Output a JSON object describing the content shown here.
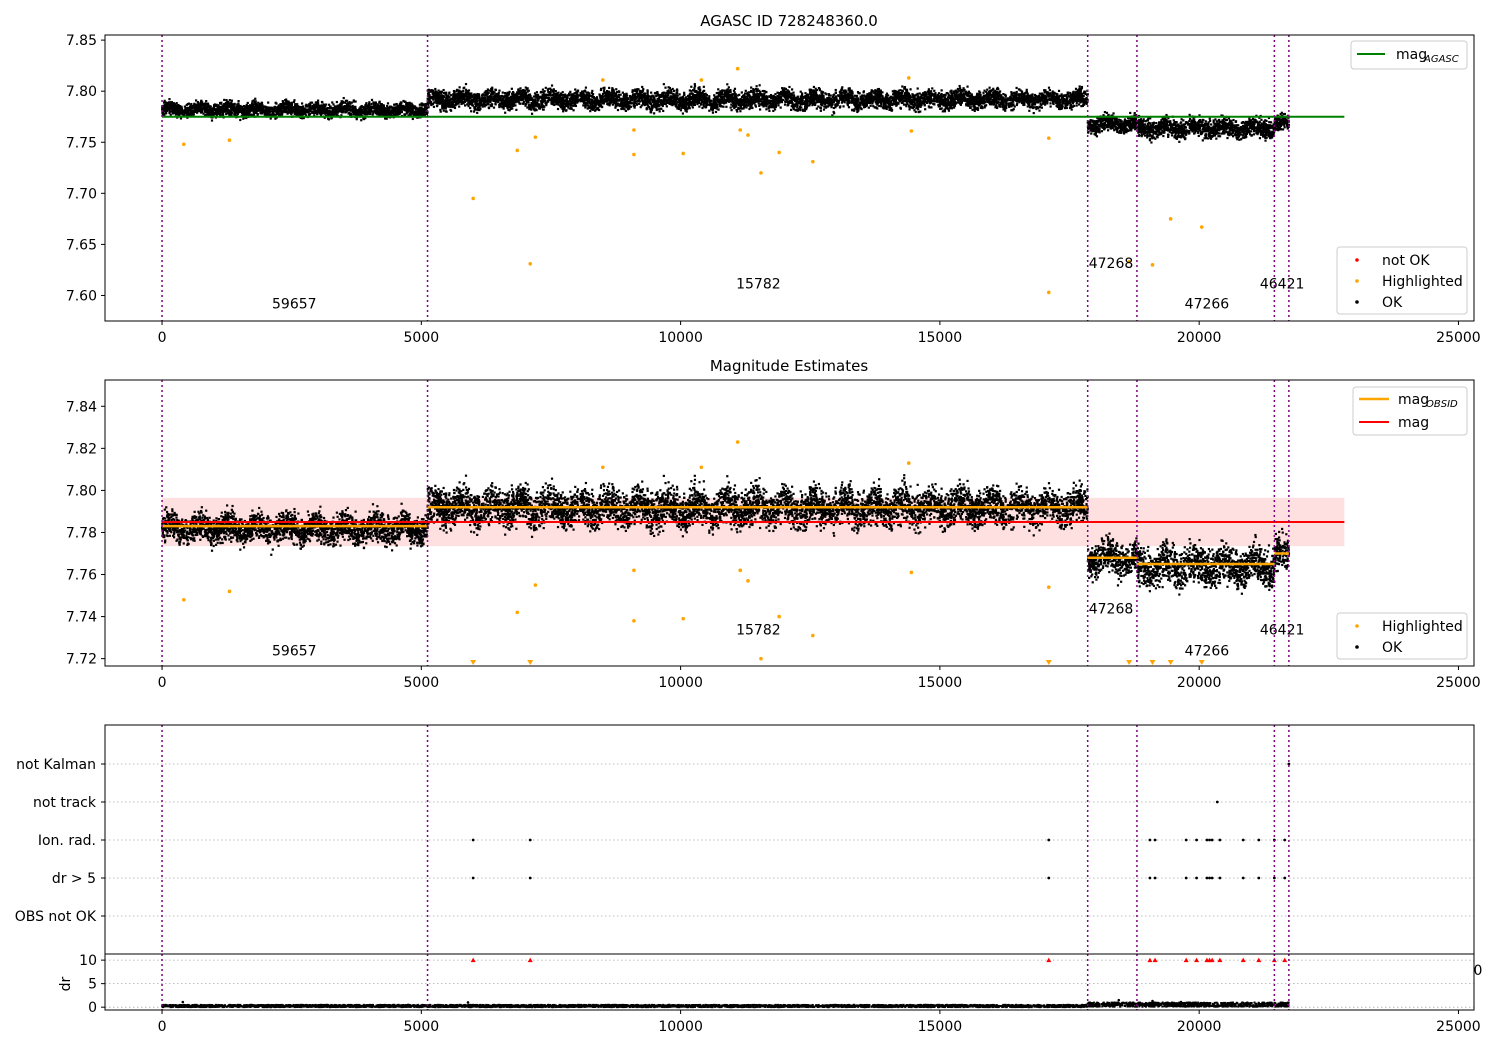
{
  "chart_data": [
    {
      "type": "scatter",
      "title": "AGASC ID 728248360.0",
      "xlabel": "",
      "ylabel": "",
      "xlim": [
        -1100,
        25300
      ],
      "ylim": [
        7.575,
        7.855
      ],
      "x_ticks": [
        0,
        5000,
        10000,
        15000,
        20000,
        25000
      ],
      "x_tick_labels": [
        "0",
        "5000",
        "10000",
        "15000",
        "20000",
        "25000"
      ],
      "y_ticks": [
        7.6,
        7.65,
        7.7,
        7.75,
        7.8,
        7.85
      ],
      "y_tick_labels": [
        "7.60",
        "7.65",
        "7.70",
        "7.75",
        "7.80",
        "7.85"
      ],
      "obs_boundaries": [
        0,
        5120,
        17850,
        18800,
        21450,
        21730
      ],
      "obs_labels": [
        {
          "text": "59657",
          "x": 2550,
          "y": 7.587
        },
        {
          "text": "15782",
          "x": 11500,
          "y": 7.607
        },
        {
          "text": "47268",
          "x": 18300,
          "y": 7.627
        },
        {
          "text": "47266",
          "x": 20150,
          "y": 7.587
        },
        {
          "text": "46421",
          "x": 21600,
          "y": 7.607
        }
      ],
      "mag_agasc": 7.775,
      "mag_agasc_xrange": [
        0,
        22800
      ],
      "ok_bands": [
        {
          "x": [
            0,
            5120
          ],
          "center": 7.782,
          "spread": 0.006
        },
        {
          "x": [
            5120,
            17850
          ],
          "center": 7.792,
          "spread": 0.008
        },
        {
          "x": [
            17850,
            18800
          ],
          "center": 7.768,
          "spread": 0.007
        },
        {
          "x": [
            18800,
            21450
          ],
          "center": 7.764,
          "spread": 0.008
        },
        {
          "x": [
            21450,
            21730
          ],
          "center": 7.769,
          "spread": 0.007
        }
      ],
      "highlighted_points": [
        [
          420,
          7.748
        ],
        [
          1300,
          7.752
        ],
        [
          6000,
          7.695
        ],
        [
          6850,
          7.742
        ],
        [
          7100,
          7.631
        ],
        [
          7200,
          7.755
        ],
        [
          9100,
          7.762
        ],
        [
          9100,
          7.738
        ],
        [
          10050,
          7.739
        ],
        [
          11150,
          7.762
        ],
        [
          11300,
          7.757
        ],
        [
          11550,
          7.72
        ],
        [
          11900,
          7.74
        ],
        [
          12550,
          7.731
        ],
        [
          14450,
          7.761
        ],
        [
          17100,
          7.754
        ],
        [
          17100,
          7.603
        ],
        [
          18650,
          7.633
        ],
        [
          19100,
          7.63
        ],
        [
          19450,
          7.675
        ],
        [
          20050,
          7.667
        ],
        [
          11100,
          7.822
        ],
        [
          10400,
          7.811
        ],
        [
          8500,
          7.811
        ],
        [
          14400,
          7.813
        ]
      ],
      "legend": [
        {
          "label": "mag",
          "sub": "AGASC",
          "color": "#008000"
        }
      ],
      "legend2": [
        {
          "label": "not OK",
          "color": "#ff0000"
        },
        {
          "label": "Highlighted",
          "color": "#ffa500"
        },
        {
          "label": "OK",
          "color": "#000000"
        }
      ]
    },
    {
      "type": "scatter",
      "title": "Magnitude Estimates",
      "xlabel": "",
      "ylabel": "",
      "xlim": [
        -1100,
        25300
      ],
      "ylim": [
        7.7165,
        7.8525
      ],
      "x_ticks": [
        0,
        5000,
        10000,
        15000,
        20000,
        25000
      ],
      "x_tick_labels": [
        "0",
        "5000",
        "10000",
        "15000",
        "20000",
        "25000"
      ],
      "y_ticks": [
        7.72,
        7.74,
        7.76,
        7.78,
        7.8,
        7.82,
        7.84
      ],
      "y_tick_labels": [
        "7.72",
        "7.74",
        "7.76",
        "7.78",
        "7.80",
        "7.82",
        "7.84"
      ],
      "obs_boundaries": [
        0,
        5120,
        17850,
        18800,
        21450,
        21730
      ],
      "obs_labels": [
        {
          "text": "59657",
          "x": 2550,
          "y": 7.7215
        },
        {
          "text": "15782",
          "x": 11500,
          "y": 7.7315
        },
        {
          "text": "47268",
          "x": 18300,
          "y": 7.7415
        },
        {
          "text": "47266",
          "x": 20150,
          "y": 7.7215
        },
        {
          "text": "46421",
          "x": 21600,
          "y": 7.7315
        }
      ],
      "mag": 7.785,
      "mag_band": [
        7.7735,
        7.7965
      ],
      "mag_xrange": [
        0,
        22800
      ],
      "mag_obsid": [
        {
          "x": [
            0,
            5120
          ],
          "value": 7.783
        },
        {
          "x": [
            5120,
            17850
          ],
          "value": 7.792
        },
        {
          "x": [
            17850,
            18800
          ],
          "value": 7.768
        },
        {
          "x": [
            18800,
            21450
          ],
          "value": 7.765
        },
        {
          "x": [
            21450,
            21730
          ],
          "value": 7.77
        }
      ],
      "ok_bands": [
        {
          "x": [
            0,
            5120
          ],
          "center": 7.782,
          "spread": 0.006
        },
        {
          "x": [
            5120,
            17850
          ],
          "center": 7.792,
          "spread": 0.008
        },
        {
          "x": [
            17850,
            18800
          ],
          "center": 7.768,
          "spread": 0.007
        },
        {
          "x": [
            18800,
            21450
          ],
          "center": 7.764,
          "spread": 0.008
        },
        {
          "x": [
            21450,
            21730
          ],
          "center": 7.769,
          "spread": 0.007
        }
      ],
      "highlighted_points": [
        [
          420,
          7.748
        ],
        [
          1300,
          7.752
        ],
        [
          6850,
          7.742
        ],
        [
          7200,
          7.755
        ],
        [
          9100,
          7.762
        ],
        [
          9100,
          7.738
        ],
        [
          10050,
          7.739
        ],
        [
          11150,
          7.762
        ],
        [
          11300,
          7.757
        ],
        [
          11550,
          7.72
        ],
        [
          11900,
          7.74
        ],
        [
          12550,
          7.731
        ],
        [
          14450,
          7.761
        ],
        [
          17100,
          7.754
        ],
        [
          11100,
          7.823
        ],
        [
          10400,
          7.811
        ],
        [
          8500,
          7.811
        ],
        [
          14400,
          7.813
        ]
      ],
      "offscale_points": [
        6000,
        7100,
        17100,
        18650,
        19100,
        19450,
        20050
      ],
      "legend": [
        {
          "label": "mag",
          "sub": "OBSID",
          "color": "#ffa500"
        },
        {
          "label": "mag",
          "sub": "",
          "color": "#ff0000"
        }
      ],
      "legend2": [
        {
          "label": "Highlighted",
          "color": "#ffa500"
        },
        {
          "label": "OK",
          "color": "#000000"
        }
      ]
    },
    {
      "type": "scatter",
      "title": "",
      "xlabel": "",
      "ylabel": "",
      "xlim": [
        -1100,
        25300
      ],
      "categories": [
        "not Kalman",
        "not track",
        "Ion. rad.",
        "dr > 5",
        "OBS not OK"
      ],
      "obs_boundaries": [
        0,
        5120,
        17850,
        18800,
        21450,
        21730
      ],
      "flag_points": {
        "not Kalman": [
          21730
        ],
        "not track": [
          20350
        ],
        "Ion. rad.": [
          6000,
          7100,
          17100,
          19050,
          19150,
          19750,
          19950,
          20150,
          20200,
          20250,
          20400,
          20850,
          21150,
          21450,
          21650
        ],
        "dr > 5": [
          6000,
          7100,
          17100,
          19050,
          19150,
          19750,
          19950,
          20150,
          20200,
          20250,
          20400,
          20850,
          21150,
          21450,
          21650
        ],
        "OBS not OK": []
      },
      "partial_tick_label": "0"
    },
    {
      "type": "scatter",
      "title": "",
      "xlabel": "",
      "ylabel": "dr",
      "xlim": [
        -1100,
        25300
      ],
      "ylim": [
        -0.6,
        11.3
      ],
      "y_ticks": [
        0,
        5,
        10
      ],
      "y_tick_labels": [
        "0",
        "5",
        "10"
      ],
      "x_ticks": [
        0,
        5000,
        10000,
        15000,
        20000,
        25000
      ],
      "x_tick_labels": [
        "0",
        "5000",
        "10000",
        "15000",
        "20000",
        "25000"
      ],
      "obs_boundaries": [
        0,
        5120,
        17850,
        18800,
        21450,
        21730
      ],
      "dr_bands": [
        {
          "x": [
            0,
            17850
          ],
          "center": 0.25,
          "spread": 0.25
        },
        {
          "x": [
            17850,
            21730
          ],
          "center": 0.55,
          "spread": 0.45
        }
      ],
      "dr_outliers": [
        [
          400,
          1.1
        ],
        [
          5900,
          1.0
        ],
        [
          18450,
          1.5
        ],
        [
          19100,
          1.3
        ],
        [
          19650,
          1.1
        ]
      ],
      "capped_points": [
        6000,
        7100,
        17100,
        19050,
        19150,
        19750,
        19950,
        20150,
        20200,
        20250,
        20400,
        20850,
        21150,
        21450,
        21650
      ]
    }
  ]
}
